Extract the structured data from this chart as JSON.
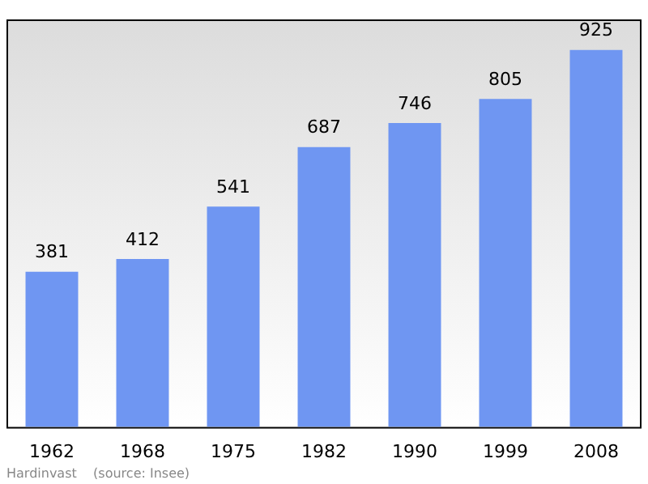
{
  "chart_data": {
    "type": "bar",
    "categories": [
      "1962",
      "1968",
      "1975",
      "1982",
      "1990",
      "1999",
      "2008"
    ],
    "values": [
      381,
      412,
      541,
      687,
      746,
      805,
      925
    ],
    "color": "#6f96f2",
    "data_labels": true,
    "grid": false,
    "legend": false,
    "annotations": [
      "Hardinvast    (source: Insee)"
    ]
  }
}
